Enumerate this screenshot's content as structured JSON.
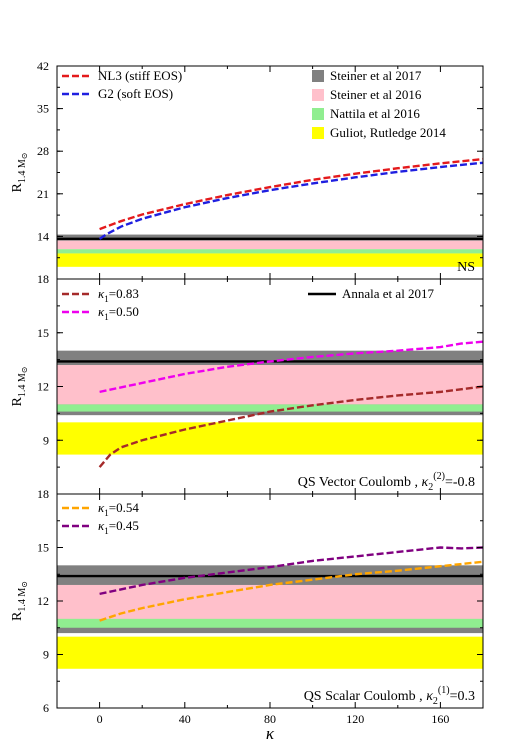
{
  "chart_data": [
    {
      "type": "line",
      "panel_label": "NS",
      "ylabel_main": "R",
      "ylabel_sub": "1.4 M",
      "ylabel_sub_symbol": "⊙",
      "xlim": [
        -20,
        180
      ],
      "ylim": [
        7,
        42
      ],
      "yticks": [
        14,
        21,
        28,
        35,
        42
      ],
      "xticks": [
        0,
        40,
        80,
        120,
        160
      ],
      "bands": [
        {
          "name": "Steiner et al 2017",
          "y": [
            13.1,
            14.3
          ],
          "color": "#808080"
        },
        {
          "name": "Steiner et al 2016",
          "y": [
            11.9,
            13.3
          ],
          "color": "#ffc0cb"
        },
        {
          "name": "Nattila et al 2016",
          "y": [
            11.2,
            11.9
          ],
          "color": "#90ee90"
        },
        {
          "name": "Guliot, Rutledge 2014",
          "y": [
            9.0,
            11.2
          ],
          "color": "#ffff00"
        }
      ],
      "reference_lines": [
        {
          "name": "Annala et al 2017",
          "y": 13.6,
          "color": "#000000"
        }
      ],
      "series": [
        {
          "name": "NL3 (stiff EOS)",
          "color": "#e41a1c",
          "x": [
            0,
            10,
            20,
            40,
            60,
            80,
            100,
            120,
            140,
            160,
            180
          ],
          "y": [
            15.2,
            16.5,
            17.6,
            19.3,
            20.8,
            22.1,
            23.3,
            24.3,
            25.2,
            26.0,
            26.7
          ]
        },
        {
          "name": "G2 (soft EOS)",
          "color": "#1f1fe0",
          "x": [
            0,
            3,
            10,
            20,
            40,
            60,
            80,
            100,
            120,
            140,
            160,
            180
          ],
          "y": [
            13.6,
            14.3,
            15.6,
            16.9,
            18.8,
            20.3,
            21.6,
            22.7,
            23.7,
            24.6,
            25.4,
            26.1
          ]
        }
      ]
    },
    {
      "type": "line",
      "panel_label": "QS Vector Coulomb , κ",
      "panel_label_sub": "2",
      "panel_label_sup": "(2)",
      "panel_label_tail": "=-0.8",
      "ylabel_main": "R",
      "ylabel_sub": "1.4 M",
      "ylabel_sub_symbol": "⊙",
      "xlim": [
        -20,
        180
      ],
      "ylim": [
        6,
        18
      ],
      "yticks": [
        9,
        12,
        15,
        18
      ],
      "xticks": [
        0,
        40,
        80,
        120,
        160
      ],
      "bands": [
        {
          "name": "Steiner et al 2017",
          "y": [
            10.4,
            14.0
          ],
          "color": "#808080"
        },
        {
          "name": "Steiner et al 2016",
          "y": [
            11.0,
            13.2
          ],
          "color": "#ffc0cb"
        },
        {
          "name": "Nattila et al 2016",
          "y": [
            10.6,
            11.0
          ],
          "color": "#90ee90"
        },
        {
          "name": "Guliot, Rutledge 2014",
          "y": [
            8.2,
            10.0
          ],
          "color": "#ffff00"
        }
      ],
      "reference_lines": [
        {
          "name": "Annala et al 2017",
          "y": 13.4,
          "color": "#000000"
        }
      ],
      "series": [
        {
          "name": "κ1=0.83",
          "color": "#a52a2a",
          "x": [
            0,
            5,
            10,
            20,
            40,
            60,
            80,
            100,
            120,
            140,
            160,
            180
          ],
          "y": [
            7.5,
            8.2,
            8.6,
            9.0,
            9.6,
            10.1,
            10.6,
            10.95,
            11.25,
            11.5,
            11.7,
            12.0
          ]
        },
        {
          "name": "κ1=0.50",
          "color": "#ee00ee",
          "x": [
            0,
            20,
            40,
            60,
            80,
            100,
            120,
            140,
            160,
            170,
            180
          ],
          "y": [
            11.7,
            12.2,
            12.7,
            13.1,
            13.4,
            13.65,
            13.85,
            14.0,
            14.2,
            14.4,
            14.5
          ]
        }
      ]
    },
    {
      "type": "line",
      "panel_label": "QS Scalar Coulomb , κ",
      "panel_label_sub": "2",
      "panel_label_sup": "(1)",
      "panel_label_tail": "=0.3",
      "ylabel_main": "R",
      "ylabel_sub": "1.4 M",
      "ylabel_sub_symbol": "⊙",
      "xlabel": "κ",
      "xlim": [
        -20,
        180
      ],
      "ylim": [
        6,
        18
      ],
      "yticks": [
        6,
        9,
        12,
        15,
        18
      ],
      "xticks": [
        0,
        40,
        80,
        120,
        160
      ],
      "xtick_labels": [
        "0",
        "40",
        "80",
        "120",
        "160"
      ],
      "bands": [
        {
          "name": "Steiner et al 2017",
          "y": [
            10.2,
            14.0
          ],
          "color": "#808080"
        },
        {
          "name": "Steiner et al 2016",
          "y": [
            10.9,
            12.9
          ],
          "color": "#ffc0cb"
        },
        {
          "name": "Nattila et al 2016",
          "y": [
            10.5,
            11.0
          ],
          "color": "#90ee90"
        },
        {
          "name": "Guliot, Rutledge 2014",
          "y": [
            8.2,
            10.0
          ],
          "color": "#ffff00"
        }
      ],
      "reference_lines": [
        {
          "name": "Annala et al 2017",
          "y": 13.4,
          "color": "#000000"
        }
      ],
      "series": [
        {
          "name": "κ1=0.54",
          "color": "#ffa500",
          "x": [
            0,
            10,
            20,
            40,
            60,
            80,
            100,
            120,
            140,
            160,
            180
          ],
          "y": [
            10.9,
            11.3,
            11.6,
            12.1,
            12.5,
            12.9,
            13.2,
            13.5,
            13.7,
            13.95,
            14.2
          ]
        },
        {
          "name": "κ1=0.45",
          "color": "#800080",
          "x": [
            0,
            20,
            40,
            60,
            80,
            100,
            120,
            140,
            160,
            170,
            180
          ],
          "y": [
            12.4,
            12.9,
            13.3,
            13.6,
            13.9,
            14.25,
            14.5,
            14.75,
            15.0,
            14.95,
            15.0
          ]
        }
      ]
    }
  ],
  "legends": {
    "top_left": [
      "NL3 (stiff EOS)",
      "G2 (soft EOS)"
    ],
    "top_right": [
      "Steiner et al 2017",
      "Steiner et al 2016",
      "Nattila et al 2016",
      "Guliot, Rutledge 2014"
    ],
    "mid_left": [
      "κ1=0.83",
      "κ1=0.50"
    ],
    "mid_right": [
      "Annala et al 2017"
    ],
    "bot_left": [
      "κ1=0.54",
      "κ1=0.45"
    ]
  }
}
